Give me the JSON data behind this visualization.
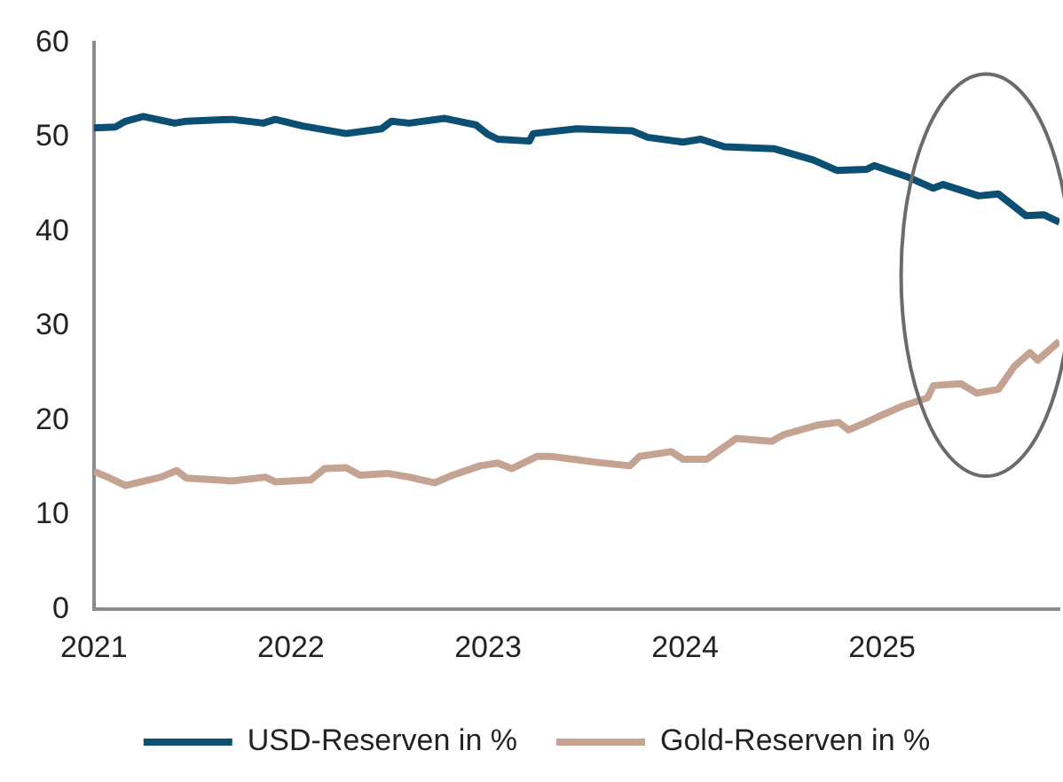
{
  "chart_data": {
    "type": "line",
    "xlim": [
      2021,
      2025.9
    ],
    "xticks": [
      2021,
      2022,
      2023,
      2024,
      2025
    ],
    "ylim": [
      0,
      60
    ],
    "yticks": [
      0,
      10,
      20,
      30,
      40,
      50,
      60
    ],
    "grid": false,
    "legend": "bottom",
    "series": [
      {
        "name": "USD-Reserven in %",
        "color": "#0b4f72",
        "x": [
          2021.0,
          2021.11,
          2021.16,
          2021.25,
          2021.41,
          2021.47,
          2021.7,
          2021.86,
          2021.92,
          2022.06,
          2022.28,
          2022.46,
          2022.51,
          2022.6,
          2022.78,
          2022.94,
          2023.0,
          2023.05,
          2023.21,
          2023.23,
          2023.45,
          2023.73,
          2023.81,
          2023.99,
          2024.08,
          2024.2,
          2024.45,
          2024.65,
          2024.77,
          2024.92,
          2024.96,
          2025.13,
          2025.26,
          2025.31,
          2025.49,
          2025.59,
          2025.73,
          2025.82,
          2025.9
        ],
        "values": [
          51.0,
          51.1,
          51.7,
          52.2,
          51.5,
          51.7,
          51.9,
          51.5,
          51.9,
          51.2,
          50.4,
          50.9,
          51.7,
          51.5,
          52.0,
          51.3,
          50.3,
          49.8,
          49.6,
          50.4,
          50.9,
          50.7,
          50.0,
          49.5,
          49.8,
          49.0,
          48.8,
          47.6,
          46.5,
          46.6,
          47.0,
          45.8,
          44.6,
          45.0,
          43.8,
          44.0,
          41.7,
          41.8,
          41.0
        ]
      },
      {
        "name": "Gold-Reserven in %",
        "color": "#c4a393",
        "x": [
          2021.0,
          2021.07,
          2021.16,
          2021.34,
          2021.42,
          2021.47,
          2021.7,
          2021.87,
          2021.92,
          2022.1,
          2022.17,
          2022.28,
          2022.35,
          2022.49,
          2022.6,
          2022.73,
          2022.82,
          2022.96,
          2023.05,
          2023.12,
          2023.25,
          2023.32,
          2023.54,
          2023.72,
          2023.77,
          2023.93,
          2023.99,
          2024.11,
          2024.26,
          2024.44,
          2024.5,
          2024.67,
          2024.78,
          2024.83,
          2024.92,
          2024.98,
          2025.1,
          2025.23,
          2025.26,
          2025.4,
          2025.48,
          2025.59,
          2025.67,
          2025.75,
          2025.79,
          2025.9
        ],
        "values": [
          14.6,
          14.0,
          13.1,
          14.0,
          14.7,
          13.9,
          13.6,
          14.0,
          13.5,
          13.7,
          14.9,
          15.0,
          14.2,
          14.4,
          14.0,
          13.4,
          14.2,
          15.2,
          15.5,
          14.9,
          16.2,
          16.2,
          15.6,
          15.2,
          16.2,
          16.7,
          15.9,
          15.9,
          18.1,
          17.8,
          18.5,
          19.5,
          19.8,
          19.0,
          19.8,
          20.4,
          21.5,
          22.4,
          23.7,
          23.9,
          22.9,
          23.3,
          25.7,
          27.2,
          26.4,
          28.4
        ]
      }
    ]
  }
}
